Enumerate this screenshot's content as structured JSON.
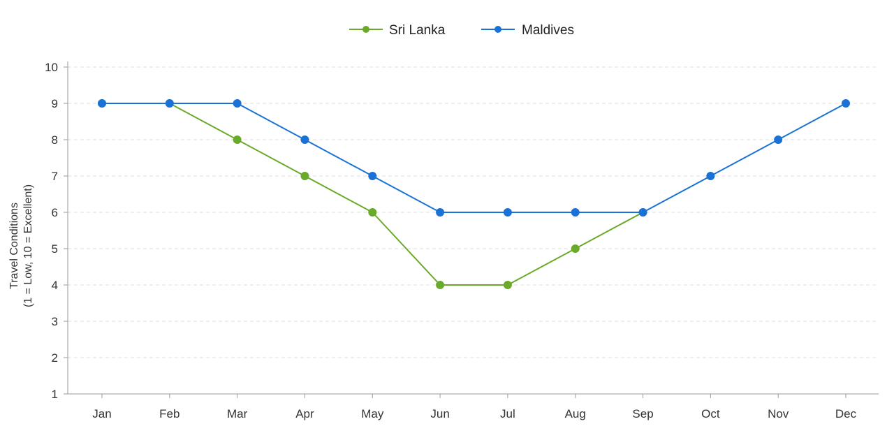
{
  "chart_data": {
    "type": "line",
    "categories": [
      "Jan",
      "Feb",
      "Mar",
      "Apr",
      "May",
      "Jun",
      "Jul",
      "Aug",
      "Sep",
      "Oct",
      "Nov",
      "Dec"
    ],
    "series": [
      {
        "name": "Sri Lanka",
        "color": "#6aaa2a",
        "values": [
          9,
          9,
          8,
          7,
          6,
          4,
          4,
          5,
          6,
          null,
          null,
          null
        ]
      },
      {
        "name": "Maldives",
        "color": "#1a72d6",
        "values": [
          9,
          9,
          9,
          8,
          7,
          6,
          6,
          6,
          6,
          7,
          8,
          9
        ]
      }
    ],
    "ylabel_lines": [
      "Travel Conditions",
      "(1 = Low, 10 = Excellent)"
    ],
    "xlabel": "",
    "ylim": [
      1,
      10
    ],
    "yticks": [
      "1",
      "2",
      "3",
      "4",
      "5",
      "6",
      "7",
      "8",
      "9",
      "10"
    ],
    "grid": "horizontal-dashed",
    "legend_position": "top-center"
  }
}
